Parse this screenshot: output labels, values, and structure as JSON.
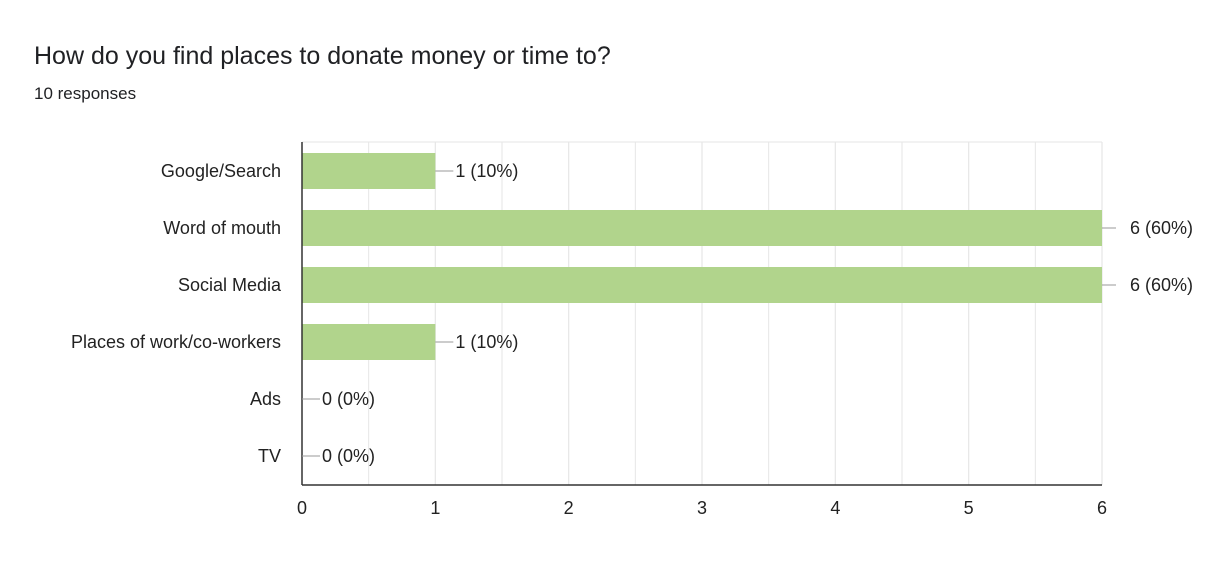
{
  "title": "How do you find places to donate money or time to?",
  "subtitle": "10 responses",
  "chart_data": {
    "type": "bar",
    "orientation": "horizontal",
    "title": "How do you find places to donate money or time to?",
    "subtitle": "10 responses",
    "categories": [
      "Google/Search",
      "Word of mouth",
      "Social Media",
      "Places of work/co-workers",
      "Ads",
      "TV"
    ],
    "values": [
      1,
      6,
      6,
      1,
      0,
      0
    ],
    "labels": [
      "1 (10%)",
      "6 (60%)",
      "6 (60%)",
      "1 (10%)",
      "0 (0%)",
      "0 (0%)"
    ],
    "xticks": [
      "0",
      "1",
      "2",
      "3",
      "4",
      "5",
      "6"
    ],
    "xlim": [
      0,
      6
    ],
    "grid": true,
    "bar_color": "#b1d48c",
    "grid_color": "#e6e6e6",
    "axis_color": "#333333",
    "leader_color": "#999999"
  }
}
